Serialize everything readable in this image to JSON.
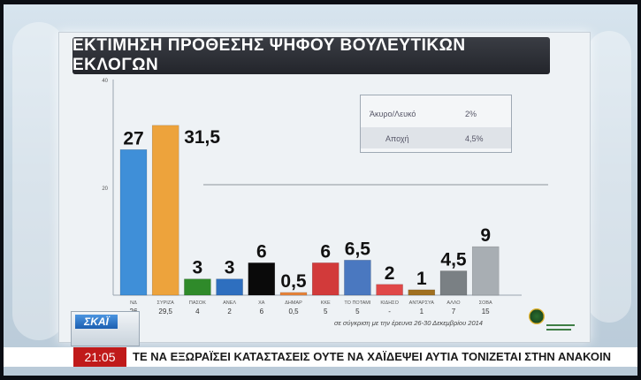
{
  "title": "ΕΚΤΙΜΗΣΗ ΠΡΟΘΕΣΗΣ ΨΗΦΟΥ ΒΟΥΛΕΥΤΙΚΩΝ ΕΚΛΟΓΩΝ",
  "legend_box": {
    "rows": [
      {
        "label": "Άκυρο/Λευκό",
        "value": "2%"
      },
      {
        "label": "Αποχή",
        "value": "4,5%"
      }
    ]
  },
  "footnote": "σε σύγκριση με την έρευνα 26-30 Δεκεμβρίου 2014",
  "channel": {
    "logo_text": "ΣΚΑΪ"
  },
  "ticker": {
    "time": "21:05",
    "text": "ΤΕ ΝΑ ΕΞΩΡΑΪΣΕΙ ΚΑΤΑΣΤΑΣΕΙΣ ΟΥΤΕ ΝΑ ΧΑΪΔΕΨΕΙ ΑΥΤΙΑ ΤΟΝΙΖΕΤΑΙ ΣΤΗΝ ΑΝΑΚΟΙΝ"
  },
  "chart_data": {
    "type": "bar",
    "title": "ΕΚΤΙΜΗΣΗ ΠΡΟΘΕΣΗΣ ΨΗΦΟΥ ΒΟΥΛΕΥΤΙΚΩΝ ΕΚΛΟΓΩΝ",
    "categories": [
      "ΝΔ",
      "ΣΥΡΙΖΑ",
      "ΠΑΣΟΚ",
      "ΑΝΕΛ",
      "ΧΑ",
      "ΔΗΜΑΡ",
      "ΚΚΕ",
      "ΤΟ ΠΟΤΑΜΙ",
      "ΚΙΔΗΣΟ",
      "ΑΝΤΑΡΣΥΑ",
      "ΑΛΛΟ",
      "ΣΟΒΑ"
    ],
    "values": [
      27,
      31.5,
      3,
      3,
      6,
      0.5,
      6,
      6.5,
      2,
      1,
      4.5,
      9
    ],
    "value_labels": [
      "27",
      "31,5",
      "3",
      "3",
      "6",
      "0,5",
      "6",
      "6,5",
      "2",
      "1",
      "4,5",
      "9"
    ],
    "previous_values": [
      "26",
      "29,5",
      "4",
      "2",
      "6",
      "0,5",
      "5",
      "5",
      "-",
      "1",
      "7",
      "15"
    ],
    "colors": [
      "#3f8fd8",
      "#eda33c",
      "#2f8a2a",
      "#2e6fbf",
      "#0a0a0a",
      "#e8843a",
      "#d23a3a",
      "#4a78c0",
      "#e04848",
      "#a07020",
      "#7a8084",
      "#a8aeb3"
    ],
    "y_ticks": [
      "40",
      "20"
    ],
    "ylim": [
      0,
      40
    ],
    "grid": false,
    "xlabel": "",
    "ylabel": ""
  }
}
